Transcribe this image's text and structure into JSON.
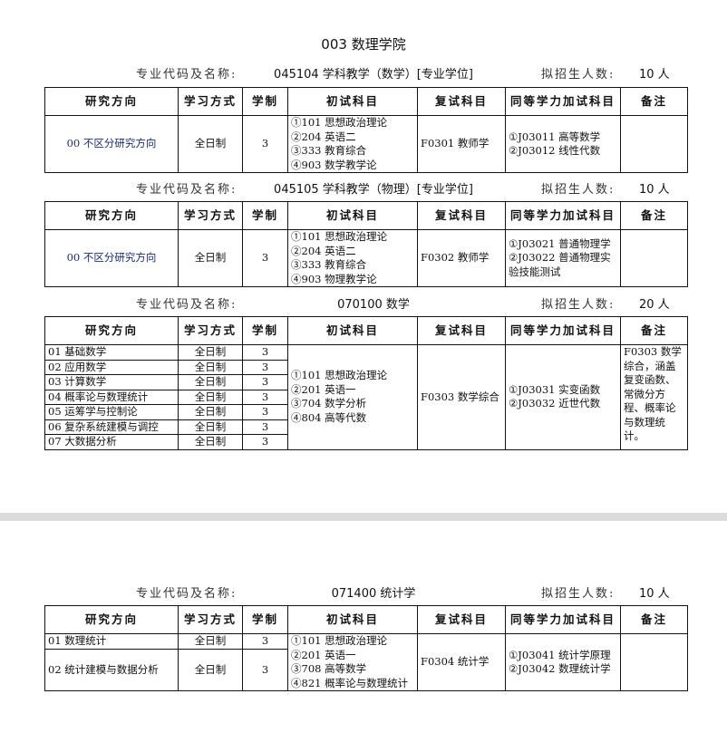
{
  "title": "003 数理学院",
  "labels": {
    "major": "专业代码及名称:",
    "quota": "拟招生人数:"
  },
  "headers": [
    "研究方向",
    "学习方式",
    "学制",
    "初试科目",
    "复试科目",
    "同等学力加试科目",
    "备注"
  ],
  "sections": [
    {
      "major": "045104 学科教学（数学）[专业学位]",
      "quota": "10 人",
      "rows": [
        {
          "direction": "00 不区分研究方向",
          "mode": "全日制",
          "years": "3"
        }
      ],
      "exam": [
        "①101 思想政治理论",
        "②204 英语二",
        "③333 教育综合",
        "④903 数学教学论"
      ],
      "retest": "F0301 教师学",
      "extra": [
        "①J03011 高等数学",
        "②J03012 线性代数"
      ],
      "note": ""
    },
    {
      "major": "045105 学科教学（物理）[专业学位]",
      "quota": "10 人",
      "rows": [
        {
          "direction": "00 不区分研究方向",
          "mode": "全日制",
          "years": "3"
        }
      ],
      "exam": [
        "①101 思想政治理论",
        "②204 英语二",
        "③333 教育综合",
        "④903 物理教学论"
      ],
      "retest": "F0302 教师学",
      "extra": [
        "①J03021 普通物理学",
        "②J03022 普通物理实验技能测试"
      ],
      "note": ""
    },
    {
      "major": "070100 数学",
      "quota": "20 人",
      "rows": [
        {
          "direction": "01 基础数学",
          "mode": "全日制",
          "years": "3"
        },
        {
          "direction": "02 应用数学",
          "mode": "全日制",
          "years": "3"
        },
        {
          "direction": "03 计算数学",
          "mode": "全日制",
          "years": "3"
        },
        {
          "direction": "04 概率论与数理统计",
          "mode": "全日制",
          "years": "3"
        },
        {
          "direction": "05 运筹学与控制论",
          "mode": "全日制",
          "years": "3"
        },
        {
          "direction": "06 复杂系统建模与调控",
          "mode": "全日制",
          "years": "3"
        },
        {
          "direction": "07 大数据分析",
          "mode": "全日制",
          "years": "3"
        }
      ],
      "exam": [
        "①101 思想政治理论",
        "②201 英语一",
        "③704 数学分析",
        "④804 高等代数"
      ],
      "retest": "F0303 数学综合",
      "extra": [
        "①J03031 实变函数",
        "②J03032 近世代数"
      ],
      "note": "F0303 数学综合，涵盖复变函数、常微分方程、概率论与数理统计。"
    },
    {
      "major": "071400 统计学",
      "quota": "10 人",
      "rows": [
        {
          "direction": "01 数理统计",
          "mode": "全日制",
          "years": "3"
        },
        {
          "direction": "02 统计建模与数据分析",
          "mode": "全日制",
          "years": "3"
        }
      ],
      "exam": [
        "①101 思想政治理论",
        "②201 英语一",
        "③708 高等数学",
        "④821 概率论与数理统计"
      ],
      "retest": "F0304 统计学",
      "extra": [
        "①J03041 统计学原理",
        "②J03042 数理统计学"
      ],
      "note": ""
    }
  ]
}
